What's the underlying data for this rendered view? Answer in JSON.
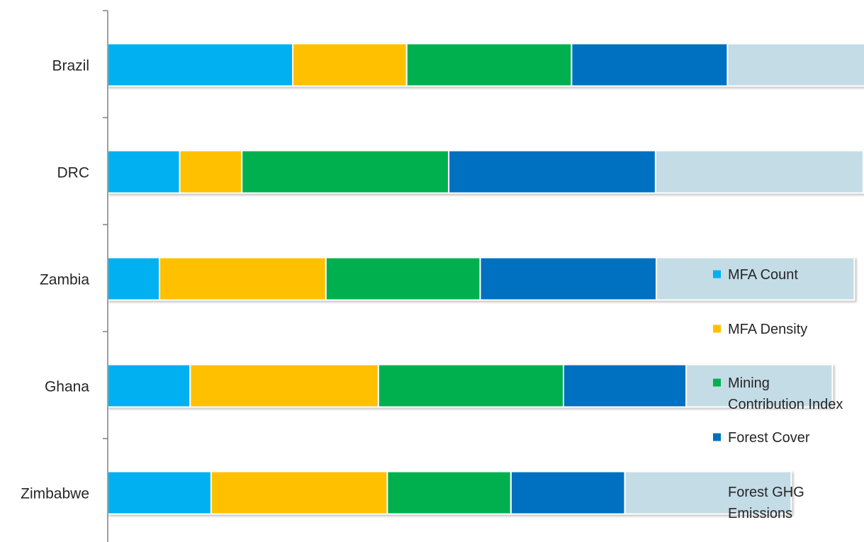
{
  "chart_data": {
    "type": "bar",
    "orientation": "horizontal",
    "stacked": true,
    "title": "",
    "xlabel": "",
    "ylabel": "",
    "xlim": [
      0,
      1
    ],
    "grid": false,
    "legend_position": "right",
    "categories": [
      "Brazil",
      "DRC",
      "Zambia",
      "Ghana",
      "Zimbabwe"
    ],
    "series": [
      {
        "name": "MFA Count",
        "color": "#00b0f0",
        "values": [
          0.229,
          0.089,
          0.064,
          0.102,
          0.128
        ]
      },
      {
        "name": "MFA Density",
        "color": "#ffc000",
        "values": [
          0.141,
          0.077,
          0.206,
          0.233,
          0.218
        ]
      },
      {
        "name": "Mining Contribution Index",
        "color": "#00b050",
        "values": [
          0.204,
          0.256,
          0.191,
          0.229,
          0.153
        ]
      },
      {
        "name": "Forest Cover",
        "color": "#0070c0",
        "values": [
          0.193,
          0.256,
          0.218,
          0.152,
          0.141
        ]
      },
      {
        "name": "Forest GHG Emissions",
        "color": "#c4dce6",
        "values": [
          0.218,
          0.257,
          0.245,
          0.181,
          0.206
        ]
      }
    ],
    "legend": [
      {
        "lines": [
          "MFA Count"
        ]
      },
      {
        "lines": [
          "MFA Density"
        ]
      },
      {
        "lines": [
          "Mining",
          "Contribution Index"
        ]
      },
      {
        "lines": [
          "Forest Cover"
        ]
      },
      {
        "lines": [
          "Forest GHG",
          "Emissions"
        ]
      }
    ]
  }
}
